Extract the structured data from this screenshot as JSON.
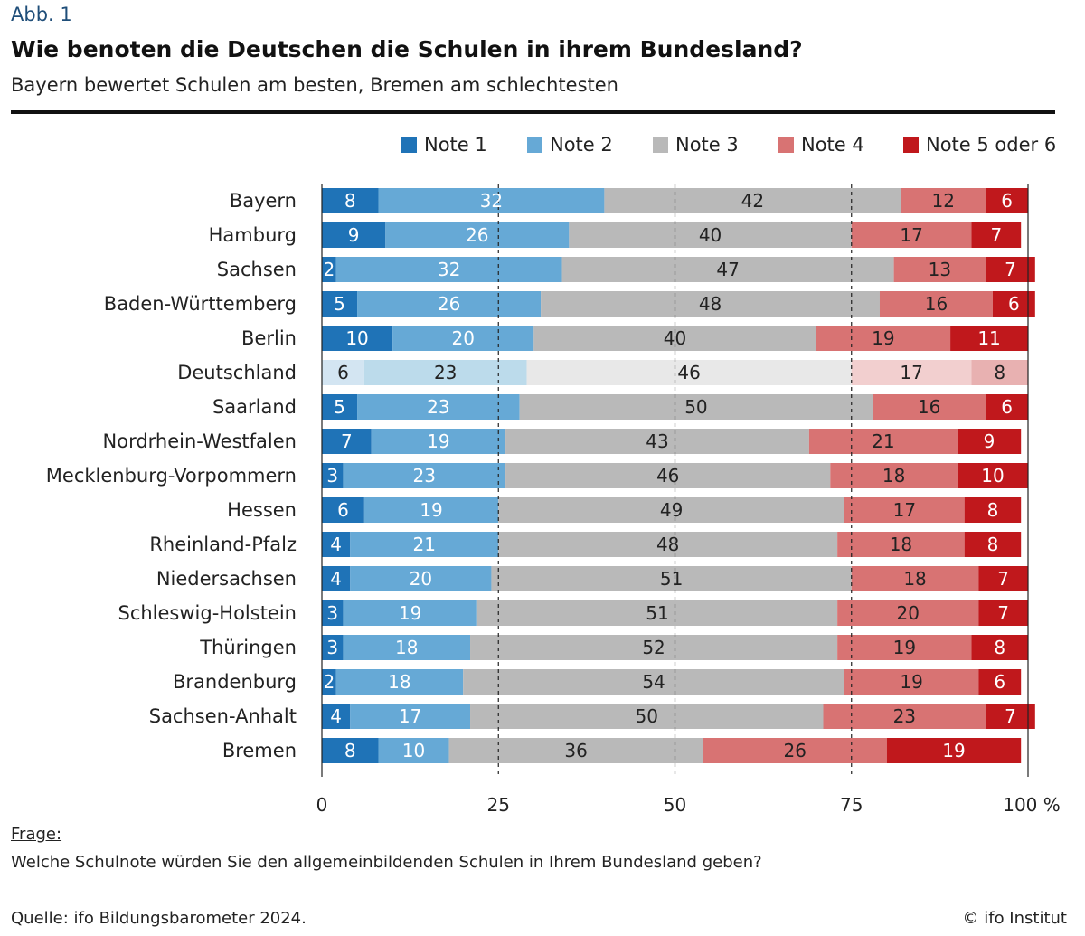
{
  "figure_label": "Abb. 1",
  "title": "Wie benoten die Deutschen die Schulen in ihrem Bundesland?",
  "subtitle": "Bayern bewertet Schulen am besten, Bremen am schlechtesten",
  "colors": {
    "note1": "#1f73b7",
    "note2": "#66a9d6",
    "note3": "#b9b9b9",
    "note4": "#d87373",
    "note5": "#c0181c",
    "note1_light": "#d3e5f2",
    "note2_light": "#bcdbeb",
    "note3_light": "#e8e8e8",
    "note4_light": "#f2cfcf",
    "note5_light": "#e8b1b1"
  },
  "chart_data": {
    "type": "bar",
    "orientation": "horizontal",
    "stacked": true,
    "categories": [
      "Bayern",
      "Hamburg",
      "Sachsen",
      "Baden-Württemberg",
      "Berlin",
      "Deutschland",
      "Saarland",
      "Nordrhein-Westfalen",
      "Mecklenburg-Vorpommern",
      "Hessen",
      "Rheinland-Pfalz",
      "Niedersachsen",
      "Schleswig-Holstein",
      "Thüringen",
      "Brandenburg",
      "Sachsen-Anhalt",
      "Bremen"
    ],
    "highlight_category": "Deutschland",
    "series": [
      {
        "name": "Note 1",
        "values": [
          8,
          9,
          2,
          5,
          10,
          6,
          5,
          7,
          3,
          6,
          4,
          4,
          3,
          3,
          2,
          4,
          8
        ]
      },
      {
        "name": "Note 2",
        "values": [
          32,
          26,
          32,
          26,
          20,
          23,
          23,
          19,
          23,
          19,
          21,
          20,
          19,
          18,
          18,
          17,
          10
        ]
      },
      {
        "name": "Note 3",
        "values": [
          42,
          40,
          47,
          48,
          40,
          46,
          50,
          43,
          46,
          49,
          48,
          51,
          51,
          52,
          54,
          50,
          36
        ]
      },
      {
        "name": "Note 4",
        "values": [
          12,
          17,
          13,
          16,
          19,
          17,
          16,
          21,
          18,
          17,
          18,
          18,
          20,
          19,
          19,
          23,
          26
        ]
      },
      {
        "name": "Note 5 oder 6",
        "values": [
          6,
          7,
          7,
          6,
          11,
          8,
          6,
          9,
          10,
          8,
          8,
          7,
          7,
          8,
          6,
          7,
          19
        ]
      }
    ],
    "xlim": [
      0,
      100
    ],
    "xticks": [
      "0",
      "25",
      "50",
      "75",
      "100 %"
    ],
    "grid": true,
    "legend": "top-right"
  },
  "footer": {
    "question_label": "Frage:",
    "question_text": "Welche Schulnote würden Sie den allgemeinbildenden Schulen in Ihrem Bundesland geben?",
    "source": "Quelle: ifo Bildungsbarometer 2024.",
    "copyright": "© ifo Institut"
  }
}
